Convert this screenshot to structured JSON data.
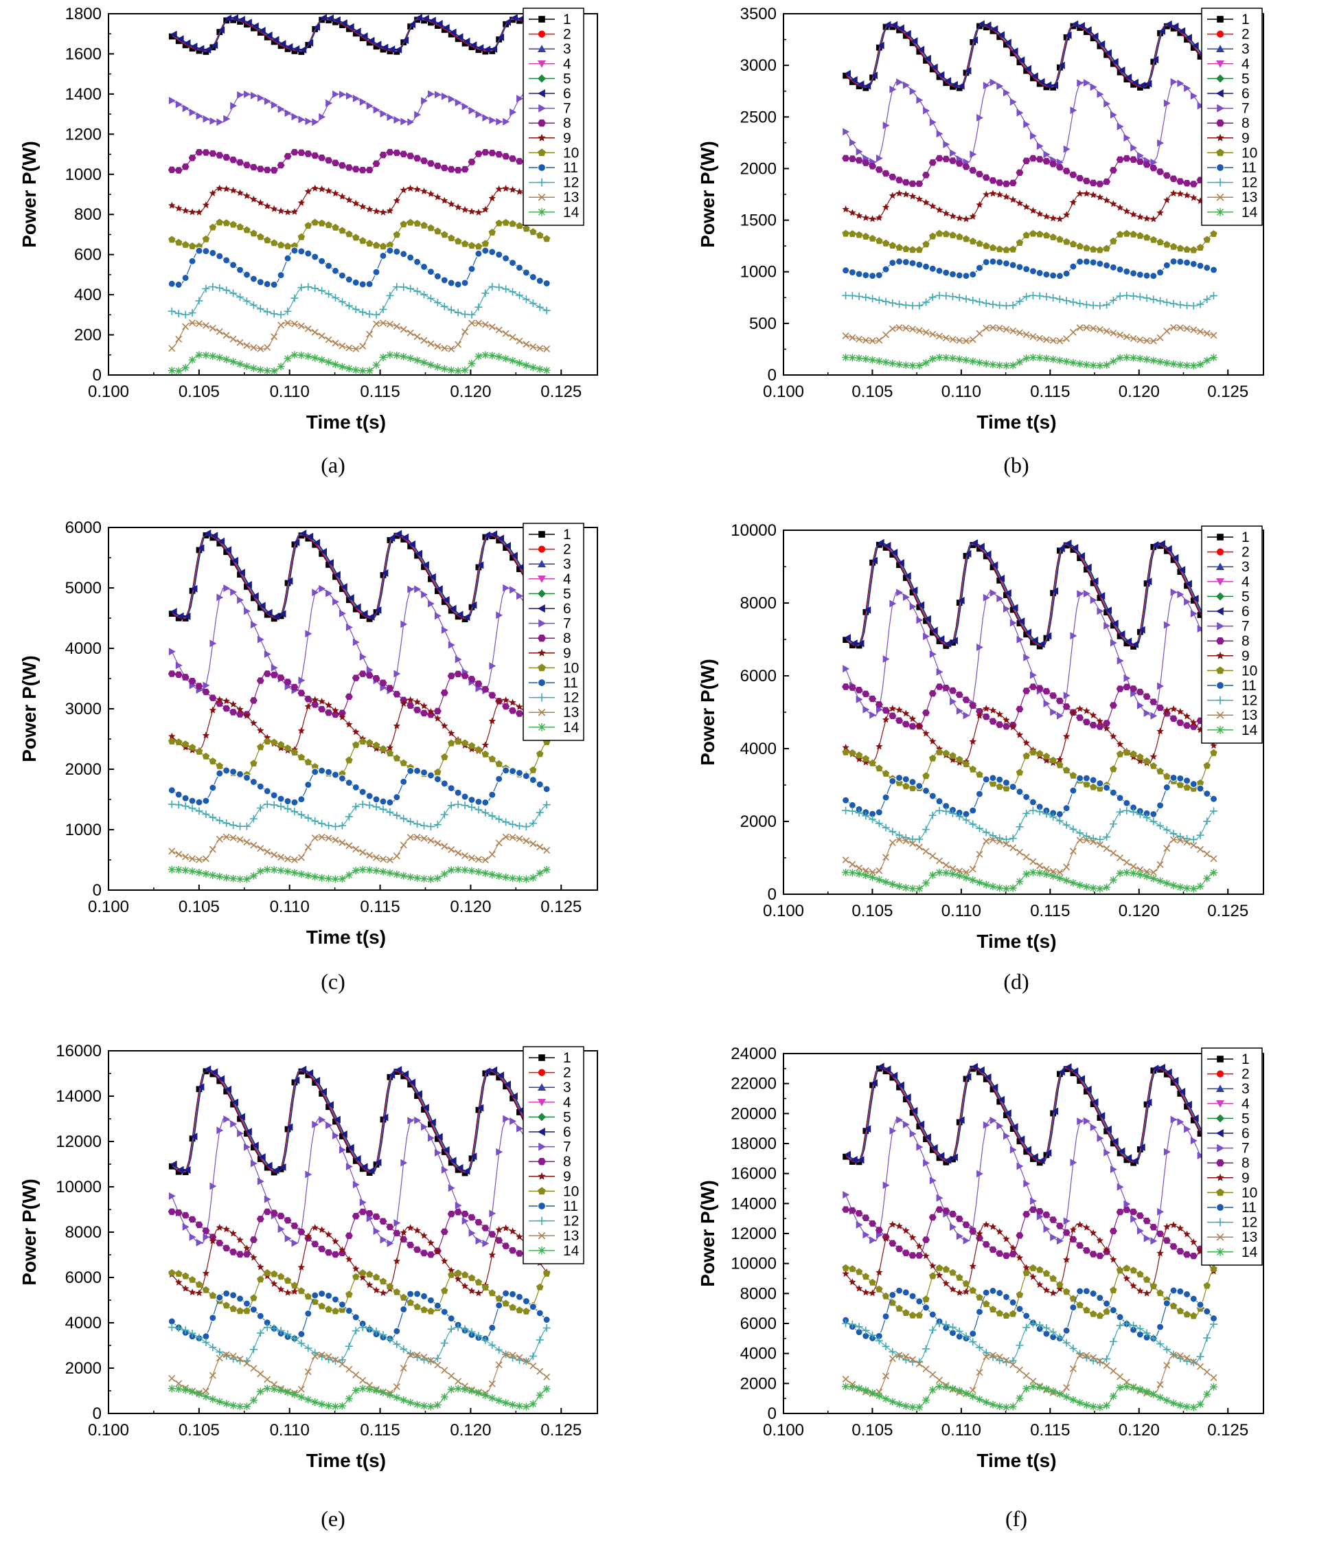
{
  "chart_data": [
    {
      "type": "line",
      "caption": "(a)",
      "xlabel": "Time t(s)",
      "ylabel": "Power P(W)",
      "xlim": [
        0.1,
        0.127
      ],
      "ylim": [
        0,
        1800
      ],
      "xticks": [
        "0.100",
        "0.105",
        "0.110",
        "0.115",
        "0.120",
        "0.125"
      ],
      "yticks": [
        "0",
        "200",
        "400",
        "600",
        "800",
        "1000",
        "1200",
        "1400",
        "1600",
        "1800"
      ],
      "x_range": [
        0.1035,
        0.1242
      ],
      "period": 0.0052,
      "legend": [
        "1",
        "2",
        "3",
        "4",
        "5",
        "6",
        "7",
        "8",
        "9",
        "10",
        "11",
        "12",
        "13",
        "14"
      ],
      "series": [
        {
          "name": "1-6",
          "min": 1610,
          "max": 1770,
          "peak_phase": 0.6
        },
        {
          "name": "7",
          "min": 1260,
          "max": 1400,
          "peak_phase": 0.75
        },
        {
          "name": "8",
          "min": 1020,
          "max": 1110,
          "peak_phase": 0.3
        },
        {
          "name": "9",
          "min": 810,
          "max": 930,
          "peak_phase": 0.5
        },
        {
          "name": "10",
          "min": 640,
          "max": 760,
          "peak_phase": 0.5
        },
        {
          "name": "11",
          "min": 450,
          "max": 620,
          "peak_phase": 0.3
        },
        {
          "name": "12",
          "min": 300,
          "max": 440,
          "peak_phase": 0.4
        },
        {
          "name": "13",
          "min": 130,
          "max": 260,
          "peak_phase": 0.2
        },
        {
          "name": "14",
          "min": 20,
          "max": 100,
          "peak_phase": 0.3
        }
      ]
    },
    {
      "type": "line",
      "caption": "(b)",
      "xlabel": "Time t(s)",
      "ylabel": "Power P(W)",
      "xlim": [
        0.1,
        0.127
      ],
      "ylim": [
        0,
        3500
      ],
      "xticks": [
        "0.100",
        "0.105",
        "0.110",
        "0.115",
        "0.120",
        "0.125"
      ],
      "yticks": [
        "0",
        "500",
        "1000",
        "1500",
        "2000",
        "2500",
        "3000",
        "3500"
      ],
      "x_range": [
        0.1035,
        0.1242
      ],
      "period": 0.0052,
      "legend": [
        "1",
        "2",
        "3",
        "4",
        "5",
        "6",
        "7",
        "8",
        "9",
        "10",
        "11",
        "12",
        "13",
        "14"
      ],
      "series": [
        {
          "name": "1-6",
          "min": 2780,
          "max": 3380,
          "peak_phase": 0.45
        },
        {
          "name": "7",
          "min": 2060,
          "max": 2840,
          "peak_phase": 0.55
        },
        {
          "name": "8",
          "min": 1850,
          "max": 2100,
          "peak_phase": 0.0
        },
        {
          "name": "9",
          "min": 1510,
          "max": 1760,
          "peak_phase": 0.55
        },
        {
          "name": "10",
          "min": 1210,
          "max": 1370,
          "peak_phase": 0.0
        },
        {
          "name": "11",
          "min": 960,
          "max": 1100,
          "peak_phase": 0.55
        },
        {
          "name": "12",
          "min": 670,
          "max": 770,
          "peak_phase": 0.0
        },
        {
          "name": "13",
          "min": 330,
          "max": 460,
          "peak_phase": 0.55
        },
        {
          "name": "14",
          "min": 90,
          "max": 170,
          "peak_phase": 0.0
        }
      ]
    },
    {
      "type": "line",
      "caption": "(c)",
      "xlabel": "Time t(s)",
      "ylabel": "Power P(W)",
      "xlim": [
        0.1,
        0.127
      ],
      "ylim": [
        0,
        6000
      ],
      "xticks": [
        "0.100",
        "0.105",
        "0.110",
        "0.115",
        "0.120",
        "0.125"
      ],
      "yticks": [
        "0",
        "1000",
        "2000",
        "3000",
        "4000",
        "5000",
        "6000"
      ],
      "x_range": [
        0.1035,
        0.1242
      ],
      "period": 0.0052,
      "legend": [
        "1",
        "2",
        "3",
        "4",
        "5",
        "6",
        "7",
        "8",
        "9",
        "10",
        "11",
        "12",
        "13",
        "14"
      ],
      "series": [
        {
          "name": "1-6",
          "min": 4480,
          "max": 5870,
          "peak_phase": 0.35
        },
        {
          "name": "7",
          "min": 3300,
          "max": 5000,
          "peak_phase": 0.55
        },
        {
          "name": "8",
          "min": 2900,
          "max": 3580,
          "peak_phase": 0.0
        },
        {
          "name": "9",
          "min": 2300,
          "max": 3150,
          "peak_phase": 0.5
        },
        {
          "name": "10",
          "min": 1900,
          "max": 2460,
          "peak_phase": 0.0
        },
        {
          "name": "11",
          "min": 1450,
          "max": 1980,
          "peak_phase": 0.55
        },
        {
          "name": "12",
          "min": 1050,
          "max": 1420,
          "peak_phase": 0.0
        },
        {
          "name": "13",
          "min": 500,
          "max": 880,
          "peak_phase": 0.55
        },
        {
          "name": "14",
          "min": 180,
          "max": 340,
          "peak_phase": 0.0
        }
      ]
    },
    {
      "type": "line",
      "caption": "(d)",
      "xlabel": "Time t(s)",
      "ylabel": "Power P(W)",
      "xlim": [
        0.1,
        0.127
      ],
      "ylim": [
        0,
        10000
      ],
      "xticks": [
        "0.100",
        "0.105",
        "0.110",
        "0.115",
        "0.120",
        "0.125"
      ],
      "yticks": [
        "0",
        "2000",
        "4000",
        "6000",
        "8000",
        "10000"
      ],
      "x_range": [
        0.1035,
        0.1242
      ],
      "period": 0.0052,
      "legend": [
        "1",
        "2",
        "3",
        "4",
        "5",
        "6",
        "7",
        "8",
        "9",
        "10",
        "11",
        "12",
        "13",
        "14"
      ],
      "series": [
        {
          "name": "1-6",
          "min": 6800,
          "max": 9600,
          "peak_phase": 0.35
        },
        {
          "name": "7",
          "min": 4900,
          "max": 8300,
          "peak_phase": 0.55
        },
        {
          "name": "8",
          "min": 4600,
          "max": 5700,
          "peak_phase": 0.0
        },
        {
          "name": "9",
          "min": 3600,
          "max": 5100,
          "peak_phase": 0.5
        },
        {
          "name": "10",
          "min": 2900,
          "max": 3900,
          "peak_phase": 0.0
        },
        {
          "name": "11",
          "min": 2200,
          "max": 3200,
          "peak_phase": 0.55
        },
        {
          "name": "12",
          "min": 1500,
          "max": 2300,
          "peak_phase": 0.0
        },
        {
          "name": "13",
          "min": 600,
          "max": 1500,
          "peak_phase": 0.55
        },
        {
          "name": "14",
          "min": 150,
          "max": 600,
          "peak_phase": 0.0
        }
      ]
    },
    {
      "type": "line",
      "caption": "(e)",
      "xlabel": "Time t(s)",
      "ylabel": "Power P(W)",
      "xlim": [
        0.1,
        0.127
      ],
      "ylim": [
        0,
        16000
      ],
      "xticks": [
        "0.100",
        "0.105",
        "0.110",
        "0.115",
        "0.120",
        "0.125"
      ],
      "yticks": [
        "0",
        "2000",
        "4000",
        "6000",
        "8000",
        "10000",
        "12000",
        "14000",
        "16000"
      ],
      "x_range": [
        0.1035,
        0.1242
      ],
      "period": 0.0052,
      "legend": [
        "1",
        "2",
        "3",
        "4",
        "5",
        "6",
        "7",
        "8",
        "9",
        "10",
        "11",
        "12",
        "13",
        "14"
      ],
      "series": [
        {
          "name": "1-6",
          "min": 10600,
          "max": 15100,
          "peak_phase": 0.35
        },
        {
          "name": "7",
          "min": 7500,
          "max": 13000,
          "peak_phase": 0.55
        },
        {
          "name": "8",
          "min": 7000,
          "max": 8900,
          "peak_phase": 0.0
        },
        {
          "name": "9",
          "min": 5300,
          "max": 8200,
          "peak_phase": 0.5
        },
        {
          "name": "10",
          "min": 4500,
          "max": 6200,
          "peak_phase": 0.0
        },
        {
          "name": "11",
          "min": 3300,
          "max": 5300,
          "peak_phase": 0.55
        },
        {
          "name": "12",
          "min": 2300,
          "max": 3800,
          "peak_phase": 0.0
        },
        {
          "name": "13",
          "min": 900,
          "max": 2600,
          "peak_phase": 0.55
        },
        {
          "name": "14",
          "min": 300,
          "max": 1100,
          "peak_phase": 0.0
        }
      ]
    },
    {
      "type": "line",
      "caption": "(f)",
      "xlabel": "Time t(s)",
      "ylabel": "Power P(W)",
      "xlim": [
        0.1,
        0.127
      ],
      "ylim": [
        0,
        24000
      ],
      "xticks": [
        "0.100",
        "0.105",
        "0.110",
        "0.115",
        "0.120",
        "0.125"
      ],
      "yticks": [
        "0",
        "2000",
        "4000",
        "6000",
        "8000",
        "10000",
        "12000",
        "14000",
        "16000",
        "18000",
        "20000",
        "22000",
        "24000"
      ],
      "x_range": [
        0.1035,
        0.1242
      ],
      "period": 0.0052,
      "legend": [
        "1",
        "2",
        "3",
        "4",
        "5",
        "6",
        "7",
        "8",
        "9",
        "10",
        "11",
        "12",
        "13",
        "14"
      ],
      "series": [
        {
          "name": "1-6",
          "min": 16700,
          "max": 23000,
          "peak_phase": 0.35
        },
        {
          "name": "7",
          "min": 11500,
          "max": 19600,
          "peak_phase": 0.55
        },
        {
          "name": "8",
          "min": 10500,
          "max": 13600,
          "peak_phase": 0.0
        },
        {
          "name": "9",
          "min": 8000,
          "max": 12600,
          "peak_phase": 0.5
        },
        {
          "name": "10",
          "min": 6500,
          "max": 9700,
          "peak_phase": 0.0
        },
        {
          "name": "11",
          "min": 5000,
          "max": 8200,
          "peak_phase": 0.55
        },
        {
          "name": "12",
          "min": 3400,
          "max": 6000,
          "peak_phase": 0.0
        },
        {
          "name": "13",
          "min": 1300,
          "max": 3900,
          "peak_phase": 0.55
        },
        {
          "name": "14",
          "min": 400,
          "max": 1800,
          "peak_phase": 0.0
        }
      ]
    }
  ],
  "legend_styles": [
    {
      "label": "1",
      "color": "#000000",
      "marker": "square"
    },
    {
      "label": "2",
      "color": "#ff0000",
      "marker": "circle"
    },
    {
      "label": "3",
      "color": "#2e3fa8",
      "marker": "triangle-up"
    },
    {
      "label": "4",
      "color": "#d040c0",
      "marker": "triangle-down"
    },
    {
      "label": "5",
      "color": "#1a8a3a",
      "marker": "diamond"
    },
    {
      "label": "6",
      "color": "#1a1a8a",
      "marker": "triangle-left"
    },
    {
      "label": "7",
      "color": "#7a4ec8",
      "marker": "triangle-right"
    },
    {
      "label": "8",
      "color": "#8a1a8a",
      "marker": "hexagon"
    },
    {
      "label": "9",
      "color": "#8a1010",
      "marker": "star"
    },
    {
      "label": "10",
      "color": "#8a8a1a",
      "marker": "pentagon"
    },
    {
      "label": "11",
      "color": "#1a5ab0",
      "marker": "circle-dot"
    },
    {
      "label": "12",
      "color": "#40a8b0",
      "marker": "plus"
    },
    {
      "label": "13",
      "color": "#b08050",
      "marker": "x"
    },
    {
      "label": "14",
      "color": "#40b050",
      "marker": "asterisk"
    }
  ]
}
